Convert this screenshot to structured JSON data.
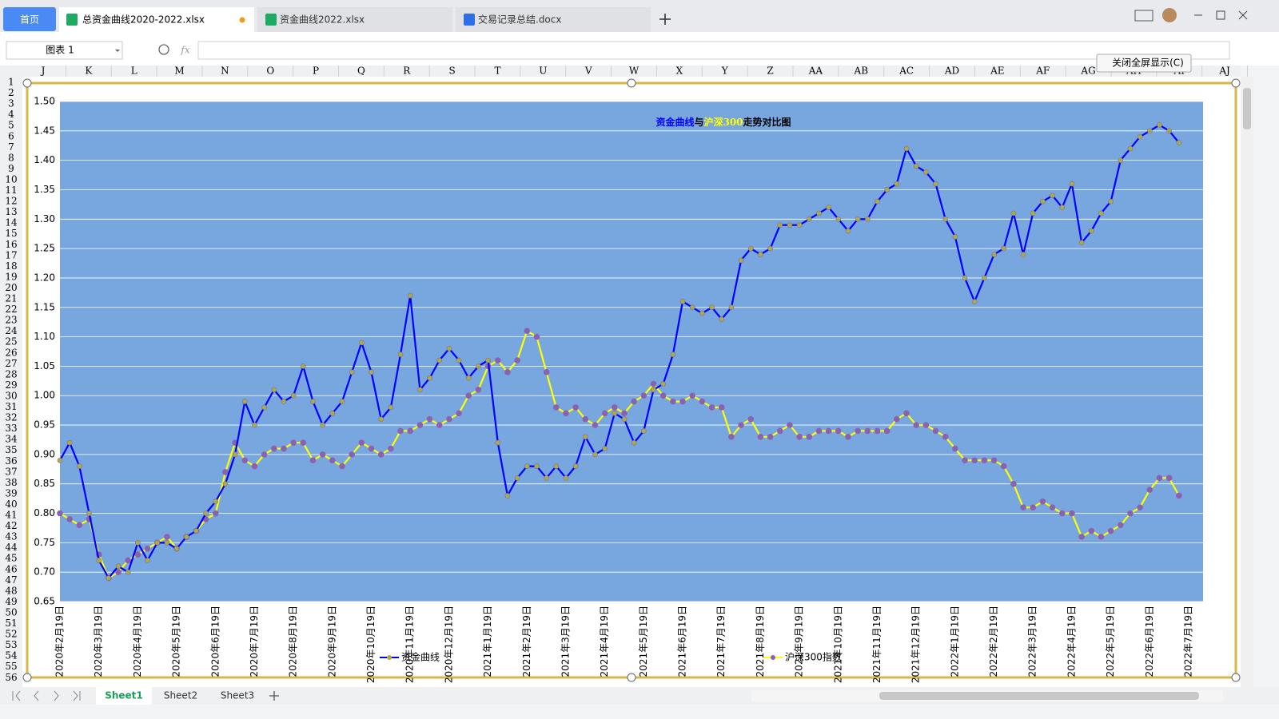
{
  "tabs": [
    "首页",
    "总资金曲线2020-2022.xlsx",
    "资金曲线2022.xlsx",
    "交易记录总结.docx"
  ],
  "name_box": "图表 1",
  "formula_icon": "fx",
  "exit_fullscreen": "关闭全屏显示(C)",
  "columns": [
    "J",
    "K",
    "L",
    "M",
    "N",
    "O",
    "P",
    "Q",
    "R",
    "S",
    "T",
    "U",
    "V",
    "W",
    "X",
    "Y",
    "Z",
    "AA",
    "AB",
    "AC",
    "AD",
    "AE",
    "AF",
    "AG",
    "AH",
    "AI",
    "AJ"
  ],
  "rows": [
    1,
    2,
    3,
    4,
    5,
    6,
    7,
    8,
    9,
    10,
    11,
    12,
    13,
    14,
    15,
    16,
    17,
    18,
    19,
    20,
    21,
    22,
    23,
    24,
    25,
    26,
    27,
    28,
    29,
    30,
    31,
    32,
    33,
    34,
    35,
    36,
    37,
    38,
    39,
    40,
    41,
    42,
    43,
    44,
    45,
    46,
    47,
    48,
    49,
    50,
    51,
    52,
    53,
    54,
    55,
    56
  ],
  "sheets": [
    "Sheet1",
    "Sheet2",
    "Sheet3"
  ],
  "chart_data": {
    "type": "line",
    "title": [
      {
        "text": "资金曲线",
        "color": "#0000ff"
      },
      {
        "text": "与",
        "color": "#000000"
      },
      {
        "text": "沪深300",
        "color": "#ffff00"
      },
      {
        "text": "走势对比图",
        "color": "#000000"
      }
    ],
    "categories": [
      "2020年2月19日",
      null,
      null,
      null,
      "2020年3月19日",
      null,
      null,
      null,
      "2020年4月19日",
      null,
      null,
      null,
      "2020年5月19日",
      null,
      null,
      null,
      "2020年6月19日",
      null,
      null,
      null,
      "2020年7月19日",
      null,
      null,
      null,
      "2020年8月19日",
      null,
      null,
      null,
      "2020年9月19日",
      null,
      null,
      null,
      "2020年10月19日",
      null,
      null,
      null,
      "2020年11月19日",
      null,
      null,
      null,
      "2020年12月19日",
      null,
      null,
      null,
      "2021年1月19日",
      null,
      null,
      null,
      "2021年2月19日",
      null,
      null,
      null,
      "2021年3月19日",
      null,
      null,
      null,
      "2021年4月19日",
      null,
      null,
      null,
      "2021年5月19日",
      null,
      null,
      null,
      "2021年6月19日",
      null,
      null,
      null,
      "2021年7月19日",
      null,
      null,
      null,
      "2021年8月19日",
      null,
      null,
      null,
      "2021年9月19日",
      null,
      null,
      null,
      "2021年10月19日",
      null,
      null,
      null,
      "2021年11月19日",
      null,
      null,
      null,
      "2021年12月19日",
      null,
      null,
      null,
      "2022年1月19日",
      null,
      null,
      null,
      "2022年2月19日",
      null,
      null,
      null,
      "2022年3月19日",
      null,
      null,
      null,
      "2022年4月19日",
      null,
      null,
      null,
      "2022年5月19日",
      null,
      null,
      null,
      "2022年6月19日",
      null,
      null,
      null,
      "2022年7月19日"
    ],
    "series": [
      {
        "name": "资金曲线",
        "color": "#0000ff",
        "marker_color": "#b0a850",
        "values": [
          0.89,
          0.92,
          0.88,
          0.8,
          0.72,
          0.69,
          0.71,
          0.7,
          0.75,
          0.72,
          0.75,
          0.75,
          0.74,
          0.76,
          0.77,
          0.8,
          0.82,
          0.85,
          0.9,
          0.99,
          0.95,
          0.98,
          1.01,
          0.99,
          1.0,
          1.05,
          0.99,
          0.95,
          0.97,
          0.99,
          1.04,
          1.09,
          1.04,
          0.96,
          0.98,
          1.07,
          1.17,
          1.01,
          1.03,
          1.06,
          1.08,
          1.06,
          1.03,
          1.05,
          1.06,
          0.92,
          0.83,
          0.86,
          0.88,
          0.88,
          0.86,
          0.88,
          0.86,
          0.88,
          0.93,
          0.9,
          0.91,
          0.97,
          0.96,
          0.92,
          0.94,
          1.01,
          1.02,
          1.07,
          1.16,
          1.15,
          1.14,
          1.15,
          1.13,
          1.15,
          1.23,
          1.25,
          1.24,
          1.25,
          1.29,
          1.29,
          1.29,
          1.3,
          1.31,
          1.32,
          1.3,
          1.28,
          1.3,
          1.3,
          1.33,
          1.35,
          1.36,
          1.42,
          1.39,
          1.38,
          1.36,
          1.3,
          1.27,
          1.2,
          1.16,
          1.2,
          1.24,
          1.25,
          1.31,
          1.24,
          1.31,
          1.33,
          1.34,
          1.32,
          1.36,
          1.26,
          1.28,
          1.31,
          1.33,
          1.4,
          1.42,
          1.44,
          1.45,
          1.46,
          1.45,
          1.43,
          null
        ]
      },
      {
        "name": "沪深300指数",
        "color": "#ffff00",
        "marker_color": "#8a62b0",
        "values": [
          0.8,
          0.79,
          0.78,
          0.79,
          0.73,
          0.69,
          0.7,
          0.72,
          0.73,
          0.74,
          0.75,
          0.76,
          0.74,
          0.76,
          0.77,
          0.79,
          0.8,
          0.87,
          0.92,
          0.89,
          0.88,
          0.9,
          0.91,
          0.91,
          0.92,
          0.92,
          0.89,
          0.9,
          0.89,
          0.88,
          0.9,
          0.92,
          0.91,
          0.9,
          0.91,
          0.94,
          0.94,
          0.95,
          0.96,
          0.95,
          0.96,
          0.97,
          1.0,
          1.01,
          1.05,
          1.06,
          1.04,
          1.06,
          1.11,
          1.1,
          1.04,
          0.98,
          0.97,
          0.98,
          0.96,
          0.95,
          0.97,
          0.98,
          0.97,
          0.99,
          1.0,
          1.02,
          1.0,
          0.99,
          0.99,
          1.0,
          0.99,
          0.98,
          0.98,
          0.93,
          0.95,
          0.96,
          0.93,
          0.93,
          0.94,
          0.95,
          0.93,
          0.93,
          0.94,
          0.94,
          0.94,
          0.93,
          0.94,
          0.94,
          0.94,
          0.94,
          0.96,
          0.97,
          0.95,
          0.95,
          0.94,
          0.93,
          0.91,
          0.89,
          0.89,
          0.89,
          0.89,
          0.88,
          0.85,
          0.81,
          0.81,
          0.82,
          0.81,
          0.8,
          0.8,
          0.76,
          0.77,
          0.76,
          0.77,
          0.78,
          0.8,
          0.81,
          0.84,
          0.86,
          0.86,
          0.83,
          null
        ]
      }
    ],
    "ylim": [
      0.65,
      1.5
    ],
    "yticks": [
      0.65,
      {
        "value": 0.7,
        "label": "0.70"
      },
      0.75,
      {
        "value": 0.8,
        "label": "0.80"
      },
      0.85,
      {
        "value": 0.9,
        "label": "0.90"
      },
      0.95,
      {
        "value": 1.0,
        "label": "1.00"
      },
      1.05,
      {
        "value": 1.1,
        "label": "1.10"
      },
      1.15,
      {
        "value": 1.2,
        "label": "1.20"
      },
      1.25,
      {
        "value": 1.3,
        "label": "1.30"
      },
      1.35,
      {
        "value": 1.4,
        "label": "1.40"
      },
      1.45,
      {
        "value": 1.5,
        "label": "1.50"
      }
    ],
    "grid": true,
    "plot_color": "#78a6de",
    "legend": "bottom"
  }
}
